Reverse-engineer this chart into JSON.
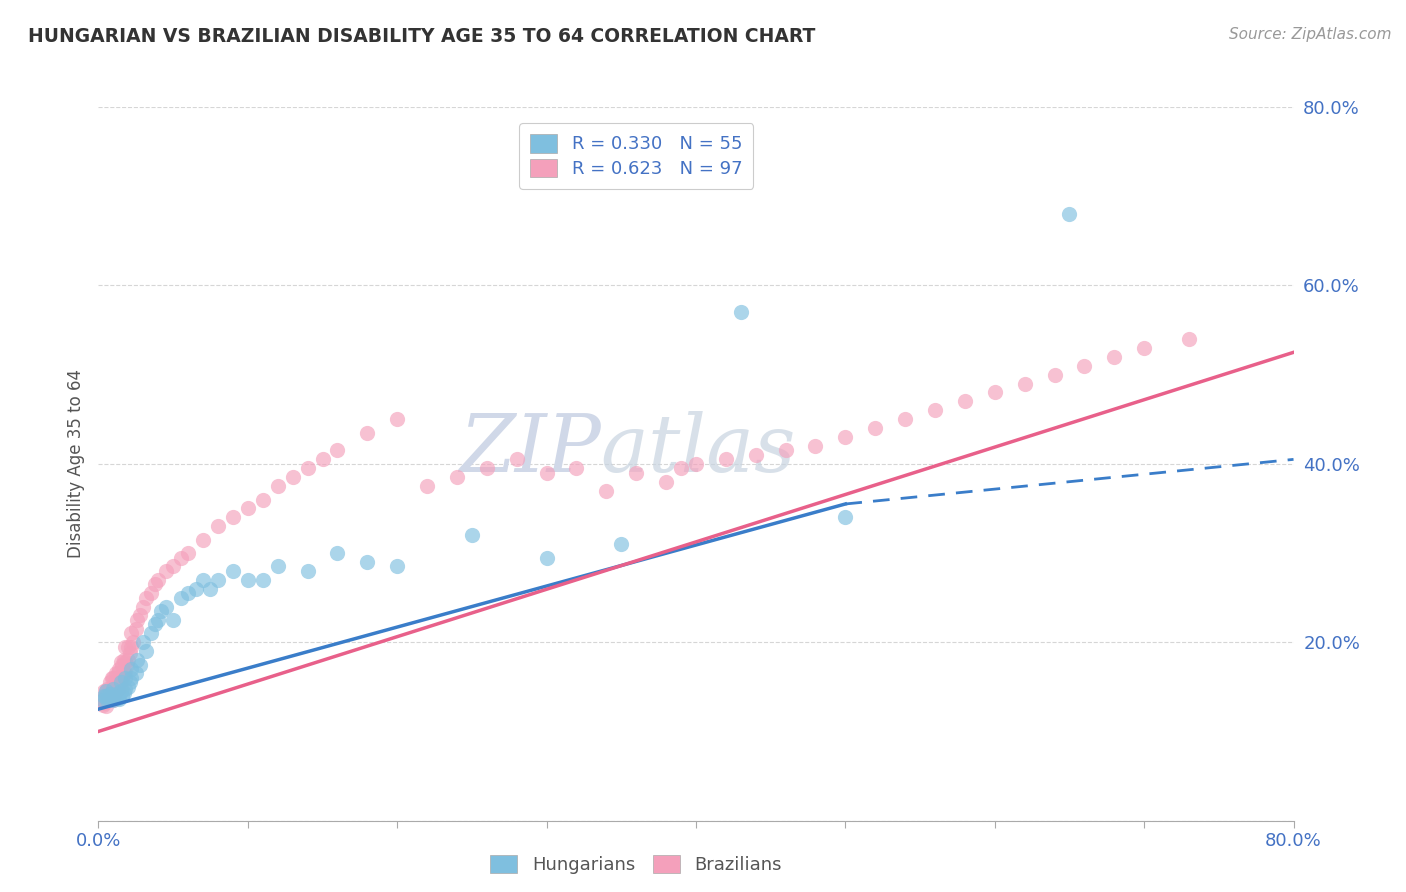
{
  "title": "HUNGARIAN VS BRAZILIAN DISABILITY AGE 35 TO 64 CORRELATION CHART",
  "source": "Source: ZipAtlas.com",
  "ylabel": "Disability Age 35 to 64",
  "xlim": [
    0.0,
    0.8
  ],
  "ylim": [
    0.0,
    0.8
  ],
  "color_hungarian": "#7fbfdf",
  "color_brazilian": "#f4a0bb",
  "watermark_zip": "ZIP",
  "watermark_atlas": "atlas",
  "hun_trend_x0": 0.0,
  "hun_trend_y0": 0.125,
  "hun_trend_x1": 0.5,
  "hun_trend_y1": 0.355,
  "hun_trend_dash_x1": 0.8,
  "hun_trend_dash_y1": 0.405,
  "bra_trend_x0": 0.0,
  "bra_trend_y0": 0.1,
  "bra_trend_x1": 0.8,
  "bra_trend_y1": 0.525,
  "hun_points_x": [
    0.003,
    0.004,
    0.005,
    0.005,
    0.006,
    0.007,
    0.008,
    0.009,
    0.01,
    0.01,
    0.011,
    0.012,
    0.013,
    0.014,
    0.015,
    0.015,
    0.016,
    0.017,
    0.018,
    0.018,
    0.02,
    0.021,
    0.022,
    0.022,
    0.025,
    0.026,
    0.028,
    0.03,
    0.032,
    0.035,
    0.038,
    0.04,
    0.042,
    0.045,
    0.05,
    0.055,
    0.06,
    0.065,
    0.07,
    0.075,
    0.08,
    0.09,
    0.1,
    0.11,
    0.12,
    0.14,
    0.16,
    0.18,
    0.2,
    0.25,
    0.3,
    0.35,
    0.43,
    0.5,
    0.65
  ],
  "hun_points_y": [
    0.135,
    0.14,
    0.14,
    0.145,
    0.135,
    0.138,
    0.142,
    0.138,
    0.135,
    0.148,
    0.14,
    0.142,
    0.138,
    0.136,
    0.145,
    0.155,
    0.14,
    0.143,
    0.148,
    0.16,
    0.15,
    0.155,
    0.16,
    0.17,
    0.165,
    0.18,
    0.175,
    0.2,
    0.19,
    0.21,
    0.22,
    0.225,
    0.235,
    0.24,
    0.225,
    0.25,
    0.255,
    0.26,
    0.27,
    0.26,
    0.27,
    0.28,
    0.27,
    0.27,
    0.285,
    0.28,
    0.3,
    0.29,
    0.285,
    0.32,
    0.295,
    0.31,
    0.57,
    0.34,
    0.68
  ],
  "bra_points_x": [
    0.002,
    0.003,
    0.004,
    0.004,
    0.005,
    0.005,
    0.006,
    0.006,
    0.007,
    0.007,
    0.008,
    0.008,
    0.008,
    0.009,
    0.009,
    0.009,
    0.01,
    0.01,
    0.01,
    0.01,
    0.011,
    0.011,
    0.012,
    0.012,
    0.012,
    0.013,
    0.013,
    0.014,
    0.014,
    0.015,
    0.015,
    0.015,
    0.016,
    0.016,
    0.017,
    0.017,
    0.018,
    0.018,
    0.018,
    0.019,
    0.02,
    0.02,
    0.021,
    0.022,
    0.022,
    0.023,
    0.025,
    0.026,
    0.028,
    0.03,
    0.032,
    0.035,
    0.038,
    0.04,
    0.045,
    0.05,
    0.055,
    0.06,
    0.07,
    0.08,
    0.09,
    0.1,
    0.11,
    0.12,
    0.13,
    0.14,
    0.15,
    0.16,
    0.18,
    0.2,
    0.22,
    0.24,
    0.26,
    0.28,
    0.3,
    0.32,
    0.34,
    0.36,
    0.38,
    0.39,
    0.4,
    0.42,
    0.44,
    0.46,
    0.48,
    0.5,
    0.52,
    0.54,
    0.56,
    0.58,
    0.6,
    0.62,
    0.64,
    0.66,
    0.68,
    0.7,
    0.73
  ],
  "bra_points_y": [
    0.135,
    0.13,
    0.132,
    0.145,
    0.128,
    0.145,
    0.135,
    0.148,
    0.135,
    0.145,
    0.138,
    0.145,
    0.155,
    0.138,
    0.145,
    0.16,
    0.135,
    0.14,
    0.15,
    0.16,
    0.142,
    0.155,
    0.145,
    0.15,
    0.165,
    0.148,
    0.165,
    0.155,
    0.17,
    0.15,
    0.162,
    0.178,
    0.158,
    0.175,
    0.165,
    0.18,
    0.165,
    0.178,
    0.195,
    0.175,
    0.18,
    0.195,
    0.188,
    0.195,
    0.21,
    0.2,
    0.215,
    0.225,
    0.23,
    0.24,
    0.25,
    0.255,
    0.265,
    0.27,
    0.28,
    0.285,
    0.295,
    0.3,
    0.315,
    0.33,
    0.34,
    0.35,
    0.36,
    0.375,
    0.385,
    0.395,
    0.405,
    0.415,
    0.435,
    0.45,
    0.375,
    0.385,
    0.395,
    0.405,
    0.39,
    0.395,
    0.37,
    0.39,
    0.38,
    0.395,
    0.4,
    0.405,
    0.41,
    0.415,
    0.42,
    0.43,
    0.44,
    0.45,
    0.46,
    0.47,
    0.48,
    0.49,
    0.5,
    0.51,
    0.52,
    0.53,
    0.54
  ]
}
